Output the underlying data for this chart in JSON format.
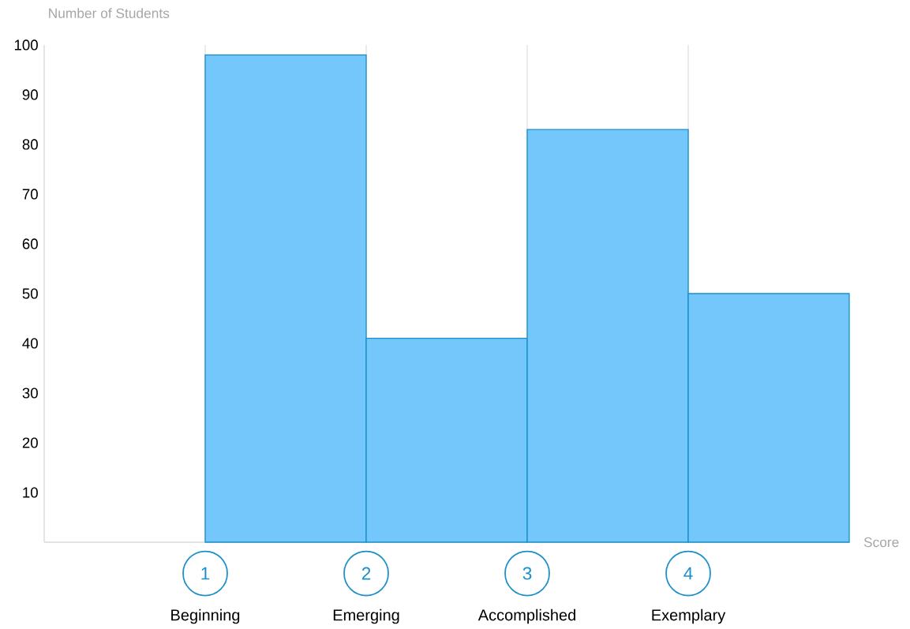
{
  "chart_data": {
    "type": "histogram",
    "xlabel": "Score",
    "ylabel": "Number of Students",
    "bins": [
      1,
      2,
      3,
      4,
      5
    ],
    "values": [
      98,
      41,
      83,
      50
    ],
    "color": "#73c7fb",
    "xlim": [
      0,
      5
    ],
    "xticks": [
      1,
      2,
      3,
      4
    ],
    "ylim": [
      0,
      100
    ],
    "yticks": [
      10,
      20,
      30,
      40,
      50,
      60,
      70,
      80,
      90,
      100
    ],
    "grid": "x",
    "annotations": [
      "Beginning",
      "Emerging",
      "Accomplished",
      "Exemplary"
    ]
  }
}
